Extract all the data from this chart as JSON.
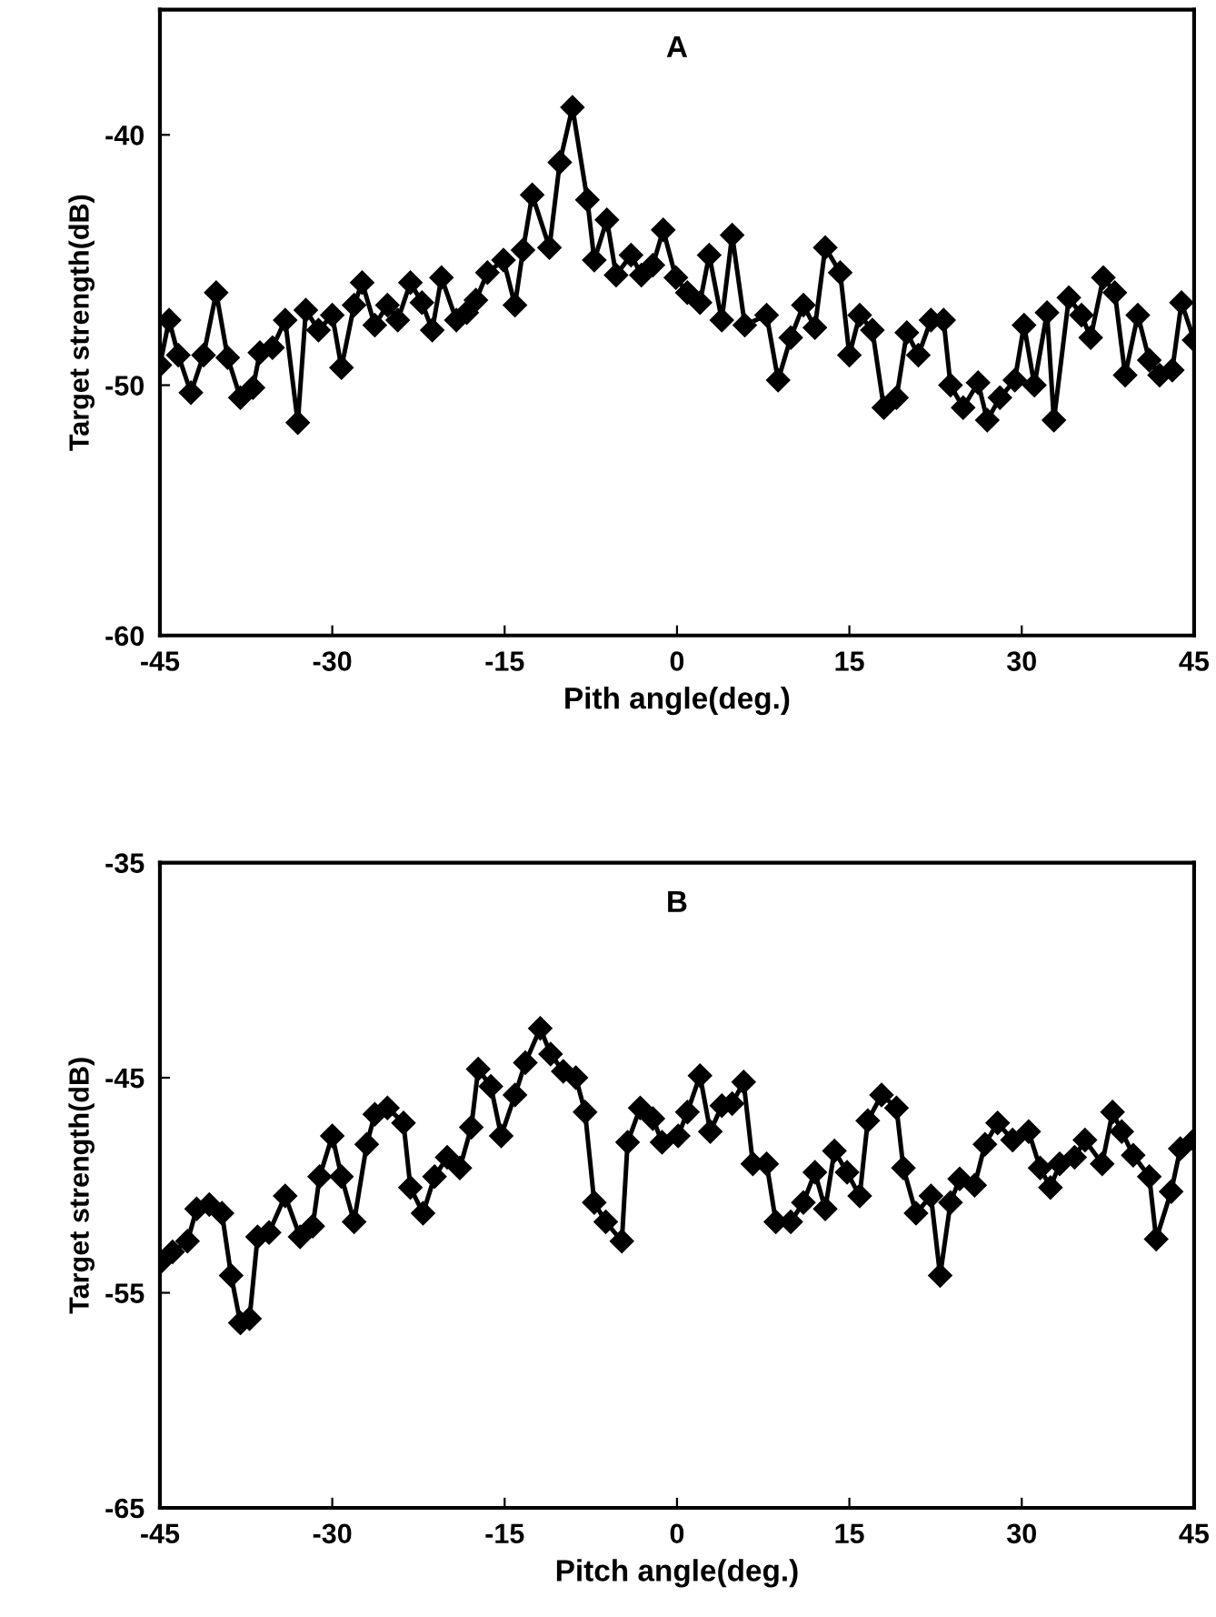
{
  "chart_data": [
    {
      "type": "line",
      "title": "A",
      "xlabel": "Pith angle(deg.)",
      "ylabel": "Target strength(dB)",
      "xlim": [
        -45,
        45
      ],
      "xticks": [
        -45,
        -30,
        -15,
        0,
        15,
        30,
        45
      ],
      "ylim": [
        -60,
        -35
      ],
      "yticks": [
        -40,
        -50,
        -60
      ],
      "marker": "diamond",
      "line_style": "solid",
      "grid": false,
      "series": [
        {
          "color": "#000000",
          "x": [
            -45,
            -44.2,
            -43.4,
            -42.3,
            -41.2,
            -40.1,
            -39.1,
            -38.0,
            -36.9,
            -36.3,
            -35.2,
            -34.1,
            -33.0,
            -32.3,
            -31.2,
            -30.0,
            -29.2,
            -28.1,
            -27.4,
            -26.3,
            -25.2,
            -24.3,
            -23.2,
            -22.2,
            -21.3,
            -20.5,
            -19.2,
            -18.3,
            -17.5,
            -16.5,
            -15.1,
            -14.1,
            -13.4,
            -12.6,
            -11.1,
            -10.2,
            -9.1,
            -7.8,
            -7.2,
            -6.1,
            -5.3,
            -4.0,
            -3.1,
            -2.1,
            -1.2,
            -0.1,
            0.9,
            2.0,
            2.8,
            3.9,
            4.8,
            5.9,
            7.8,
            8.8,
            9.9,
            11.0,
            12.0,
            12.9,
            14.2,
            15.0,
            15.9,
            17.0,
            18.0,
            19.1,
            20.0,
            21.0,
            22.1,
            23.2,
            23.8,
            24.9,
            26.2,
            27.0,
            28.1,
            29.4,
            30.2,
            31.1,
            32.2,
            32.8,
            34.1,
            35.2,
            36.0,
            37.1,
            38.1,
            39.0,
            40.1,
            41.1,
            42.0,
            43.1,
            43.9,
            45.0
          ],
          "values": [
            -49.2,
            -47.4,
            -48.8,
            -50.3,
            -48.8,
            -46.3,
            -48.9,
            -50.5,
            -50.1,
            -48.7,
            -48.5,
            -47.4,
            -51.5,
            -47.0,
            -47.8,
            -47.2,
            -49.3,
            -46.8,
            -45.9,
            -47.6,
            -46.8,
            -47.4,
            -45.9,
            -46.7,
            -47.8,
            -45.7,
            -47.4,
            -47.1,
            -46.6,
            -45.5,
            -45.0,
            -46.8,
            -44.6,
            -42.4,
            -44.5,
            -41.1,
            -38.9,
            -42.6,
            -45.0,
            -43.4,
            -45.6,
            -44.8,
            -45.6,
            -45.2,
            -43.8,
            -45.7,
            -46.3,
            -46.7,
            -44.8,
            -47.4,
            -44.0,
            -47.6,
            -47.2,
            -49.8,
            -48.1,
            -46.8,
            -47.7,
            -44.5,
            -45.5,
            -48.8,
            -47.2,
            -47.8,
            -50.9,
            -50.5,
            -47.9,
            -48.8,
            -47.4,
            -47.4,
            -50.0,
            -50.9,
            -49.9,
            -51.4,
            -50.5,
            -49.8,
            -47.6,
            -50.0,
            -47.1,
            -51.4,
            -46.5,
            -47.2,
            -48.1,
            -45.7,
            -46.3,
            -49.6,
            -47.2,
            -49.0,
            -49.6,
            -49.4,
            -46.7,
            -48.2
          ]
        }
      ]
    },
    {
      "type": "line",
      "title": "B",
      "xlabel": "Pitch angle(deg.)",
      "ylabel": "Target strength(dB)",
      "xlim": [
        -45,
        45
      ],
      "xticks": [
        -45,
        -30,
        -15,
        0,
        15,
        30,
        45
      ],
      "ylim": [
        -65,
        -35
      ],
      "yticks": [
        -35,
        -45,
        -55,
        -65
      ],
      "marker": "diamond",
      "line_style": "solid",
      "grid": false,
      "series": [
        {
          "color": "#000000",
          "x": [
            -45.0,
            -43.9,
            -42.6,
            -41.8,
            -40.7,
            -39.6,
            -38.8,
            -38.0,
            -37.2,
            -36.5,
            -35.5,
            -34.1,
            -32.8,
            -31.7,
            -31.1,
            -30.0,
            -29.2,
            -28.1,
            -27.0,
            -26.3,
            -25.2,
            -23.8,
            -23.2,
            -22.1,
            -21.1,
            -20.0,
            -18.9,
            -17.9,
            -17.3,
            -16.2,
            -15.3,
            -14.1,
            -13.2,
            -11.9,
            -11.0,
            -9.9,
            -8.8,
            -8.0,
            -7.2,
            -6.2,
            -4.8,
            -4.3,
            -3.2,
            -2.1,
            -1.3,
            0.1,
            0.9,
            2.0,
            2.9,
            3.9,
            4.8,
            5.8,
            6.6,
            7.8,
            8.6,
            9.9,
            11.0,
            12.0,
            12.9,
            13.7,
            14.8,
            15.9,
            16.6,
            17.8,
            19.1,
            19.7,
            20.8,
            22.1,
            22.9,
            23.8,
            24.6,
            25.9,
            26.8,
            27.9,
            29.2,
            30.6,
            31.6,
            32.5,
            33.3,
            34.6,
            35.5,
            37.0,
            37.9,
            38.7,
            39.7,
            41.1,
            41.7,
            43.0,
            43.8,
            45.0
          ],
          "values": [
            -53.6,
            -53.1,
            -52.6,
            -51.1,
            -50.9,
            -51.3,
            -54.2,
            -56.4,
            -56.2,
            -52.4,
            -52.2,
            -50.5,
            -52.4,
            -51.9,
            -49.6,
            -47.7,
            -49.6,
            -51.7,
            -48.1,
            -46.7,
            -46.4,
            -47.1,
            -50.1,
            -51.3,
            -49.6,
            -48.7,
            -49.2,
            -47.3,
            -44.6,
            -45.4,
            -47.7,
            -45.8,
            -44.3,
            -42.7,
            -43.9,
            -44.7,
            -45.0,
            -46.6,
            -50.8,
            -51.7,
            -52.6,
            -48.0,
            -46.4,
            -46.9,
            -48.0,
            -47.7,
            -46.6,
            -44.9,
            -47.5,
            -46.3,
            -46.2,
            -45.2,
            -49.0,
            -49.0,
            -51.7,
            -51.7,
            -50.8,
            -49.4,
            -51.1,
            -48.4,
            -49.4,
            -50.5,
            -47.0,
            -45.8,
            -46.4,
            -49.2,
            -51.3,
            -50.5,
            -54.2,
            -50.8,
            -49.7,
            -50.0,
            -48.1,
            -47.1,
            -47.9,
            -47.5,
            -49.2,
            -50.1,
            -49.0,
            -48.7,
            -47.9,
            -49.0,
            -46.6,
            -47.5,
            -48.6,
            -49.6,
            -52.5,
            -50.3,
            -48.3,
            -47.9
          ]
        }
      ]
    }
  ]
}
